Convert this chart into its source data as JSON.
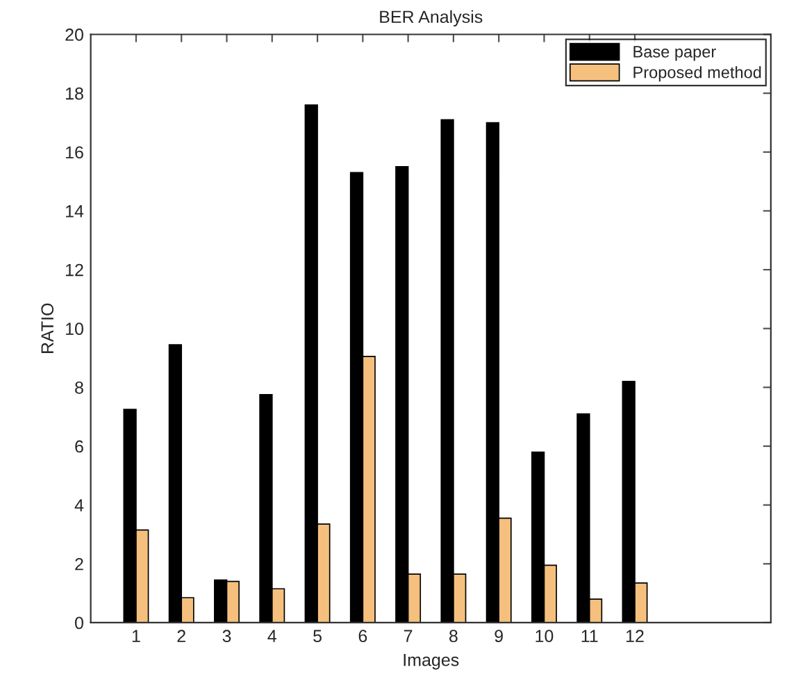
{
  "chart_data": {
    "type": "bar",
    "title": "BER Analysis",
    "xlabel": "Images",
    "ylabel": "RATIO",
    "x": [
      1,
      2,
      3,
      4,
      5,
      6,
      7,
      8,
      9,
      10,
      11,
      12
    ],
    "series": [
      {
        "name": "Base paper",
        "color": "#000000",
        "values": [
          7.25,
          9.45,
          1.45,
          7.75,
          17.6,
          15.3,
          15.5,
          17.1,
          17.0,
          5.8,
          7.1,
          8.2
        ]
      },
      {
        "name": "Proposed method",
        "color": "#f5c07e",
        "values": [
          3.15,
          0.85,
          1.4,
          1.15,
          3.35,
          9.05,
          1.65,
          1.65,
          3.55,
          1.95,
          0.8,
          1.35
        ]
      }
    ],
    "xlim": [
      0,
      15
    ],
    "xticks": [
      1,
      2,
      3,
      4,
      5,
      6,
      7,
      8,
      9,
      10,
      11,
      12
    ],
    "ylim": [
      0,
      20
    ],
    "yticks": [
      0,
      2,
      4,
      6,
      8,
      10,
      12,
      14,
      16,
      18,
      20
    ],
    "legend": "top right",
    "grid": false
  }
}
